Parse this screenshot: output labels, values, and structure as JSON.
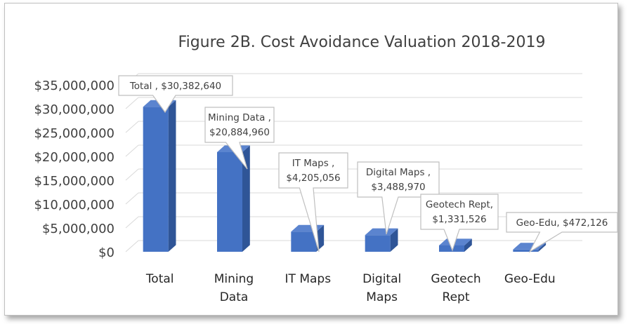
{
  "chart_data": {
    "type": "bar",
    "title": "Figure 2B. Cost Avoidance Valuation 2018-2019",
    "xlabel": "",
    "ylabel": "",
    "ylim": [
      0,
      35000000
    ],
    "yticks": [
      "$0",
      "$5,000,000",
      "$10,000,000",
      "$15,000,000",
      "$20,000,000",
      "$25,000,000",
      "$30,000,000",
      "$35,000,000"
    ],
    "categories": [
      [
        "Total"
      ],
      [
        "Mining",
        "Data"
      ],
      [
        "IT Maps"
      ],
      [
        "Digital",
        "Maps"
      ],
      [
        "Geotech",
        "Rept"
      ],
      [
        "Geo-Edu"
      ]
    ],
    "values": [
      30382640,
      20884960,
      4205056,
      3488970,
      1331526,
      472126
    ],
    "data_labels": [
      [
        "Total , $30,382,640"
      ],
      [
        "Mining Data ,",
        "$20,884,960"
      ],
      [
        "IT Maps  ,",
        "$4,205,056"
      ],
      [
        "Digital Maps ,",
        "$3,488,970"
      ],
      [
        "Geotech Rept,",
        "$1,331,526"
      ],
      [
        "Geo-Edu, $472,126"
      ]
    ],
    "grid": true,
    "legend": "none",
    "style": "3d-column",
    "colors": {
      "bar_front": "#4472c4",
      "bar_side": "#2f5597",
      "bar_top": "#5b84cf",
      "grid": "#d9d9d9",
      "text": "#404040"
    }
  }
}
